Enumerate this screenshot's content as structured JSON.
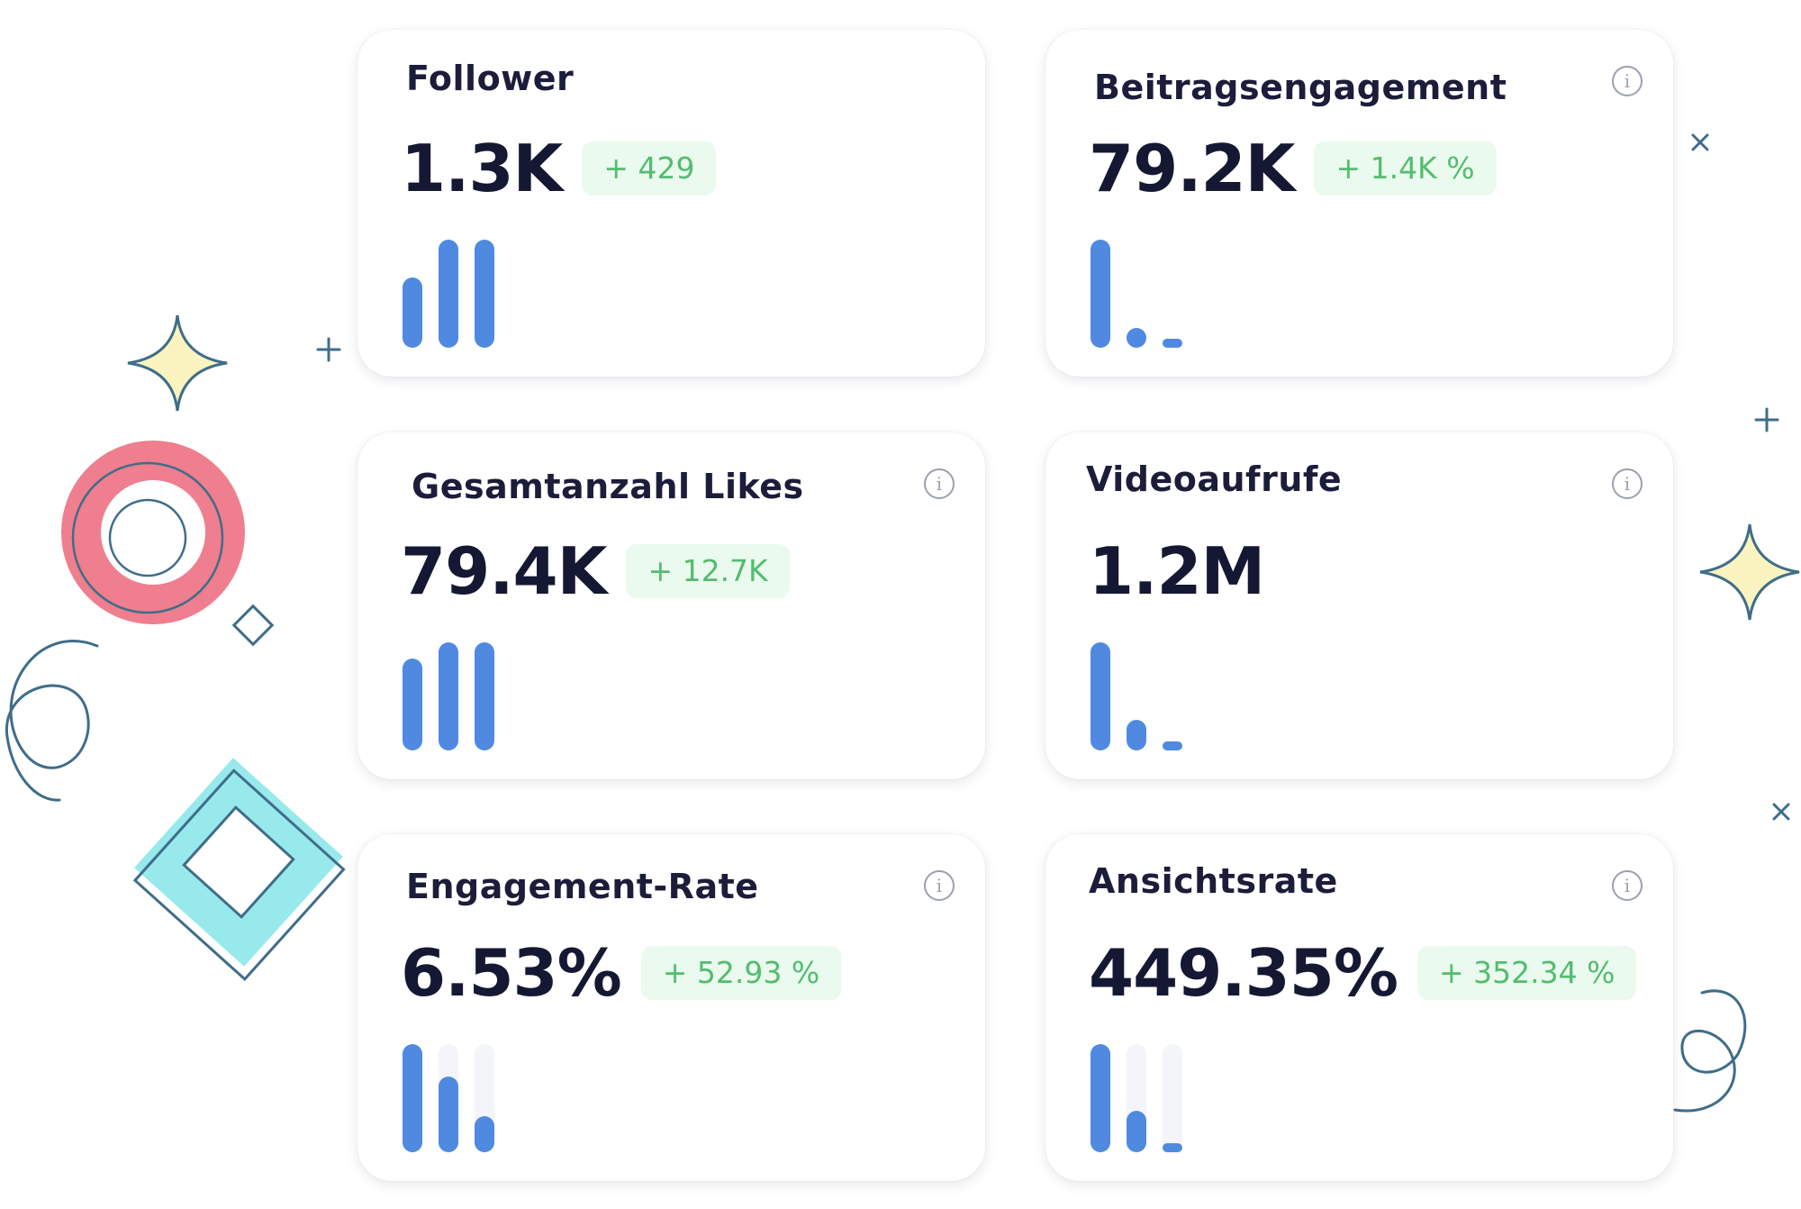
{
  "cards": [
    {
      "title": "Follower",
      "value": "1.3K",
      "delta": "+ 429",
      "info": false,
      "bars": [
        0.65,
        1.0,
        1.0
      ],
      "tracks": false
    },
    {
      "title": "Beitragsengagement",
      "value": "79.2K",
      "delta": "+ 1.4K %",
      "info": true,
      "bars": [
        1.0,
        0.18,
        0.1
      ],
      "tracks": false
    },
    {
      "title": "Gesamtanzahl Likes",
      "value": "79.4K",
      "delta": "+ 12.7K",
      "info": true,
      "bars": [
        0.85,
        1.0,
        1.0
      ],
      "tracks": false
    },
    {
      "title": "Videoaufrufe",
      "value": "1.2M",
      "delta": "",
      "info": true,
      "bars": [
        1.0,
        0.28,
        0.1
      ],
      "tracks": false
    },
    {
      "title": "Engagement-Rate",
      "value": "6.53%",
      "delta": "+ 52.93 %",
      "info": true,
      "bars": [
        1.0,
        0.7,
        0.33
      ],
      "tracks": true
    },
    {
      "title": "Ansichtsrate",
      "value": "449.35%",
      "delta": "+ 352.34 %",
      "info": true,
      "bars": [
        1.0,
        0.38,
        0.07
      ],
      "tracks": true
    }
  ],
  "icons": {
    "info": "info-icon"
  },
  "colors": {
    "bar": "#4f8ae0",
    "delta_bg": "#eafaee",
    "delta_text": "#54bc6f",
    "title": "#1b1d3a"
  }
}
